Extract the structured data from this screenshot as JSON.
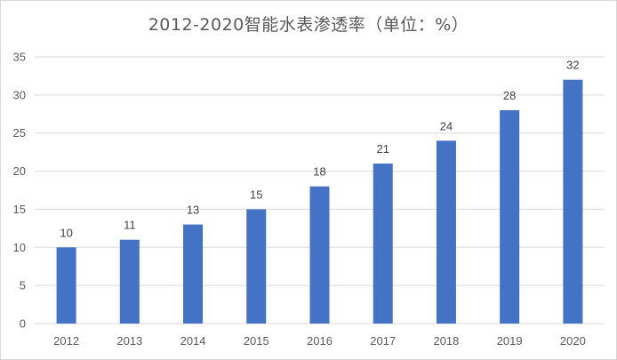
{
  "chart_data": {
    "type": "bar",
    "title": "2012-2020智能水表渗透率（单位：%）",
    "categories": [
      "2012",
      "2013",
      "2014",
      "2015",
      "2016",
      "2017",
      "2018",
      "2019",
      "2020"
    ],
    "values": [
      10,
      11,
      13,
      15,
      18,
      21,
      24,
      28,
      32
    ],
    "data_labels": [
      "10",
      "11",
      "13",
      "15",
      "18",
      "21",
      "24",
      "28",
      "32"
    ],
    "ylim": [
      0,
      35
    ],
    "yticks": [
      "0",
      "5",
      "10",
      "15",
      "20",
      "25",
      "30",
      "35"
    ],
    "grid": true,
    "legend": "none",
    "colors": {
      "bar": "#4472c4",
      "grid": "#d9d9d9",
      "text": "#595959"
    }
  }
}
